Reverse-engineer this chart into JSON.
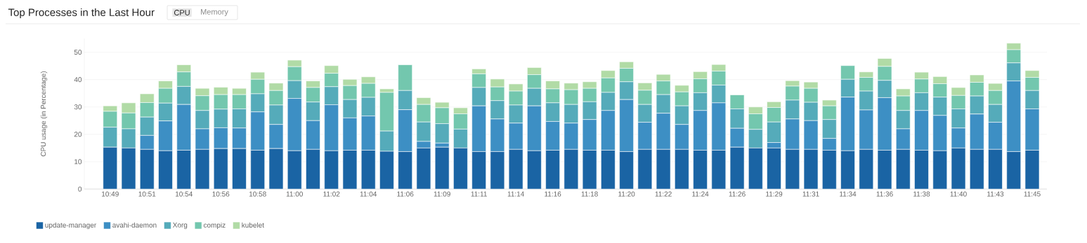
{
  "chart_data": {
    "type": "bar",
    "stacked": true,
    "title": "Top Processes in the Last Hour",
    "annotations": [
      "CPU",
      "Memory"
    ],
    "ylabel": "CPU usage (in Percentage)",
    "categories": [
      "10:49",
      null,
      "10:51",
      null,
      "10:54",
      null,
      "10:56",
      null,
      "10:58",
      null,
      "11:00",
      null,
      "11:02",
      null,
      "11:04",
      null,
      "11:06",
      null,
      "11:09",
      null,
      "11:11",
      null,
      "11:14",
      null,
      "11:16",
      null,
      "11:18",
      null,
      "11:20",
      null,
      "11:22",
      null,
      "11:24",
      null,
      "11:26",
      null,
      "11:29",
      null,
      "11:31",
      null,
      "11:34",
      null,
      "11:36",
      null,
      "11:38",
      null,
      "11:40",
      null,
      "11:43",
      null,
      "11:45"
    ],
    "series": [
      {
        "name": "update-manager",
        "color": "#1a64a4",
        "values": [
          15.3,
          15.0,
          14.5,
          14.0,
          14.2,
          14.5,
          14.8,
          14.8,
          14.2,
          14.8,
          14.0,
          14.5,
          14.0,
          14.2,
          14.2,
          13.8,
          13.7,
          15.0,
          15.3,
          15.0,
          13.7,
          13.7,
          14.5,
          14.0,
          14.2,
          14.5,
          14.2,
          14.2,
          13.7,
          14.5,
          14.5,
          14.5,
          14.2,
          14.2,
          15.3,
          15.0,
          15.0,
          14.5,
          14.5,
          14.2,
          14.0,
          14.5,
          14.2,
          14.5,
          14.2,
          14.0,
          15.0,
          14.5,
          14.5,
          13.7,
          14.2
        ]
      },
      {
        "name": "avahi-daemon",
        "color": "#3d8fc4",
        "values": [
          0,
          0,
          5.1,
          10.9,
          16.7,
          7.5,
          7.6,
          7.5,
          14.0,
          8.8,
          19.1,
          10.5,
          16.8,
          11.8,
          12.5,
          0,
          15.3,
          2.4,
          1.5,
          0,
          16.7,
          11.9,
          9.6,
          16.4,
          10.5,
          9.6,
          11.2,
          14.5,
          19.0,
          9.9,
          13.2,
          9.1,
          14.5,
          17.3,
          6.9,
          0,
          2.0,
          11.1,
          10.5,
          4.3,
          19.6,
          14.4,
          19.2,
          7.5,
          14.5,
          12.9,
          7.3,
          12.9,
          9.9,
          25.8,
          15.1
        ]
      },
      {
        "name": "Xorg",
        "color": "#55abba",
        "values": [
          7.3,
          7.0,
          6.7,
          6.5,
          6.6,
          6.7,
          6.8,
          7.0,
          6.6,
          7.1,
          6.5,
          6.8,
          6.6,
          6.7,
          6.8,
          7.4,
          7.0,
          7.1,
          7.1,
          6.9,
          6.7,
          6.7,
          6.6,
          6.4,
          6.8,
          6.8,
          6.5,
          6.6,
          6.5,
          6.5,
          6.8,
          6.8,
          6.5,
          6.5,
          7.1,
          6.8,
          7.5,
          6.9,
          6.7,
          6.9,
          6.5,
          6.9,
          6.3,
          6.7,
          6.5,
          6.7,
          7.0,
          6.6,
          6.5,
          6.6,
          6.7
        ]
      },
      {
        "name": "compiz",
        "color": "#73c7ae",
        "values": [
          5.8,
          5.8,
          5.3,
          5.4,
          5.3,
          5.4,
          5.3,
          5.2,
          5.3,
          5.3,
          5.1,
          5.3,
          4.9,
          5.1,
          5.1,
          14.1,
          9.4,
          6.4,
          5.8,
          5.6,
          5.0,
          5.0,
          5.1,
          5.0,
          5.1,
          5.4,
          4.9,
          5.3,
          4.9,
          5.2,
          5.0,
          5.1,
          5.1,
          5.1,
          5.1,
          5.7,
          5.3,
          5.1,
          5.1,
          5.0,
          5.0,
          5.0,
          5.1,
          5.3,
          5.0,
          4.9,
          4.9,
          5.0,
          5.1,
          4.8,
          4.8
        ]
      },
      {
        "name": "kubelet",
        "color": "#b1dba6",
        "values": [
          2.0,
          3.7,
          3.2,
          2.7,
          2.6,
          2.7,
          2.7,
          2.3,
          2.6,
          2.7,
          2.4,
          2.4,
          2.8,
          2.3,
          2.4,
          1.3,
          0,
          2.5,
          2.0,
          2.2,
          1.8,
          2.9,
          2.6,
          2.6,
          2.9,
          2.4,
          2.4,
          2.7,
          2.4,
          2.7,
          2.4,
          2.4,
          2.6,
          2.4,
          0,
          2.5,
          2.1,
          2.0,
          2.3,
          2.1,
          0,
          2.0,
          2.9,
          2.6,
          2.5,
          2.6,
          2.9,
          2.7,
          2.6,
          2.4,
          2.5
        ]
      }
    ],
    "ylim": [
      0,
      55
    ],
    "yticks": [
      0,
      10,
      20,
      30,
      40,
      50
    ],
    "grid": "y",
    "legend": "bottom left"
  }
}
